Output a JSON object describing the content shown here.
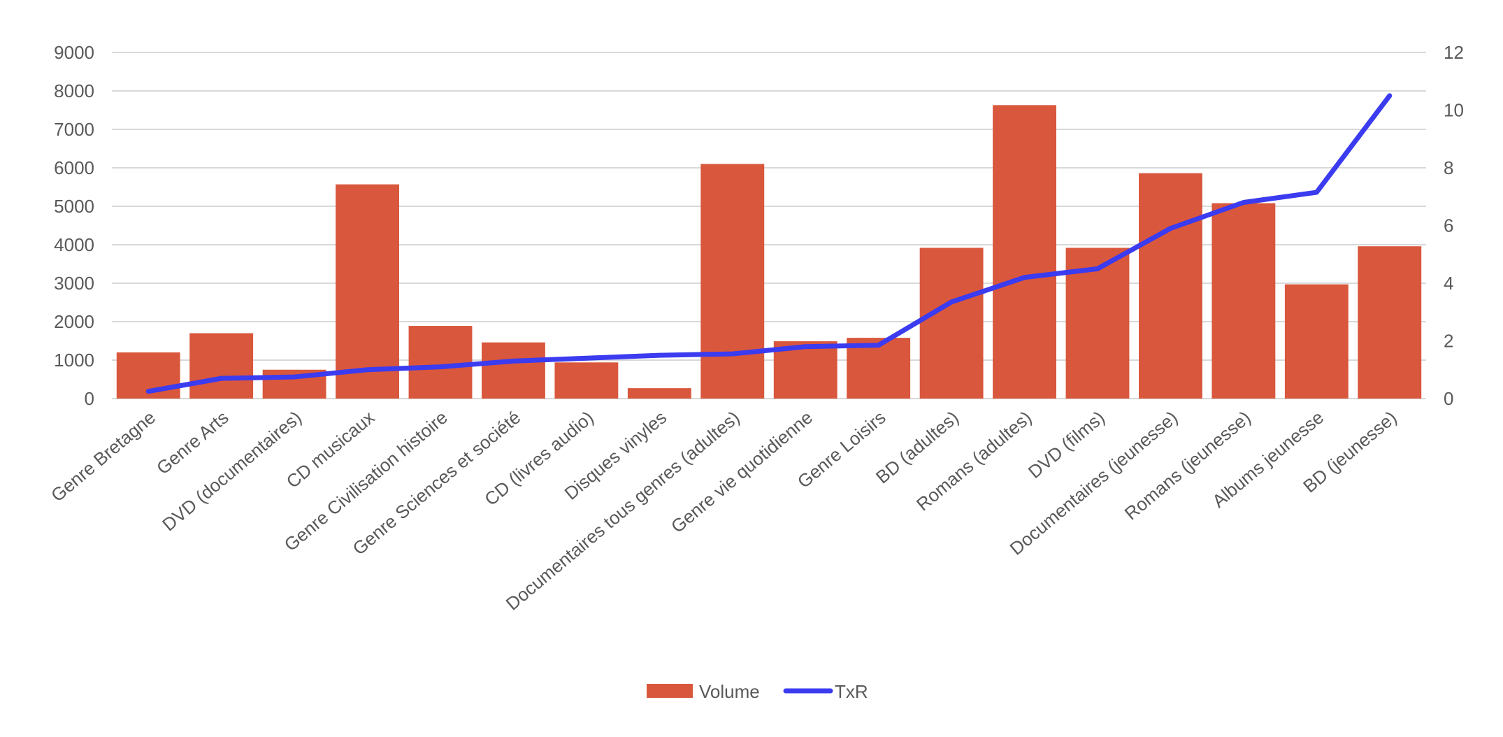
{
  "chart_data": {
    "type": "bar",
    "categories": [
      "Genre Bretagne",
      "Genre Arts",
      "DVD (documentaires)",
      "CD musicaux",
      "Genre Civilisation histoire",
      "Genre Sciences et société",
      "CD (livres audio)",
      "Disques vinyles",
      "Documentaires tous genres (adultes)",
      "Genre vie quotidienne",
      "Genre Loisirs",
      "BD (adultes)",
      "Romans (adultes)",
      "DVD (films)",
      "Documentaires (jeunesse)",
      "Romans (jeunesse)",
      "Albums jeunesse",
      "BD (jeunesse)"
    ],
    "series": [
      {
        "name": "Volume",
        "type": "bar",
        "axis": "left",
        "color": "#d9573c",
        "values": [
          1200,
          1700,
          750,
          5570,
          1890,
          1460,
          940,
          270,
          6100,
          1490,
          1580,
          3920,
          7630,
          3920,
          5860,
          5080,
          2970,
          3960
        ]
      },
      {
        "name": "TxR",
        "type": "line",
        "axis": "right",
        "color": "#3b3bf0",
        "values": [
          0.25,
          0.7,
          0.75,
          1.0,
          1.1,
          1.3,
          1.4,
          1.5,
          1.55,
          1.8,
          1.85,
          3.35,
          4.2,
          4.5,
          5.9,
          6.8,
          7.15,
          10.5
        ]
      }
    ],
    "y_left": {
      "min": 0,
      "max": 9000,
      "ticks": [
        0,
        1000,
        2000,
        3000,
        4000,
        5000,
        6000,
        7000,
        8000,
        9000
      ]
    },
    "y_right": {
      "min": 0,
      "max": 12,
      "ticks": [
        0,
        2,
        4,
        6,
        8,
        10,
        12
      ]
    },
    "grid": true,
    "legend_position": "bottom",
    "title": "",
    "xlabel": "",
    "ylabel": ""
  }
}
